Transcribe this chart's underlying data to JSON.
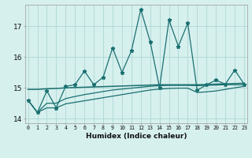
{
  "xlabel": "Humidex (Indice chaleur)",
  "x": [
    0,
    1,
    2,
    3,
    4,
    5,
    6,
    7,
    8,
    9,
    10,
    11,
    12,
    13,
    14,
    15,
    16,
    17,
    18,
    19,
    20,
    21,
    22,
    23
  ],
  "line1": [
    14.6,
    14.2,
    14.9,
    14.35,
    15.05,
    15.1,
    15.55,
    15.1,
    15.35,
    16.3,
    15.5,
    16.2,
    17.55,
    16.5,
    15.0,
    17.2,
    16.35,
    17.1,
    14.92,
    15.1,
    15.25,
    15.12,
    15.58,
    15.12
  ],
  "line2": [
    14.95,
    14.95,
    14.97,
    14.98,
    15.0,
    15.01,
    15.02,
    15.03,
    15.04,
    15.05,
    15.06,
    15.07,
    15.08,
    15.09,
    15.1,
    15.1,
    15.1,
    15.1,
    15.1,
    15.11,
    15.12,
    15.13,
    15.14,
    15.15
  ],
  "line3": [
    14.6,
    14.2,
    14.5,
    14.5,
    14.65,
    14.72,
    14.78,
    14.83,
    14.88,
    14.93,
    14.96,
    14.99,
    15.02,
    15.05,
    15.07,
    15.08,
    15.08,
    15.08,
    15.07,
    15.08,
    15.09,
    15.1,
    15.1,
    15.1
  ],
  "line4": [
    14.6,
    14.2,
    14.35,
    14.35,
    14.48,
    14.53,
    14.58,
    14.63,
    14.68,
    14.73,
    14.78,
    14.83,
    14.88,
    14.93,
    14.96,
    14.98,
    14.99,
    14.99,
    14.85,
    14.87,
    14.9,
    14.95,
    15.0,
    15.05
  ],
  "line_color": "#1a7070",
  "bg_color": "#d6f0ee",
  "grid_color": "#aed8d4",
  "ylim": [
    13.85,
    17.7
  ],
  "yticks": [
    14,
    15,
    16,
    17
  ],
  "xticks": [
    0,
    1,
    2,
    3,
    4,
    5,
    6,
    7,
    8,
    9,
    10,
    11,
    12,
    13,
    14,
    15,
    16,
    17,
    18,
    19,
    20,
    21,
    22,
    23
  ]
}
